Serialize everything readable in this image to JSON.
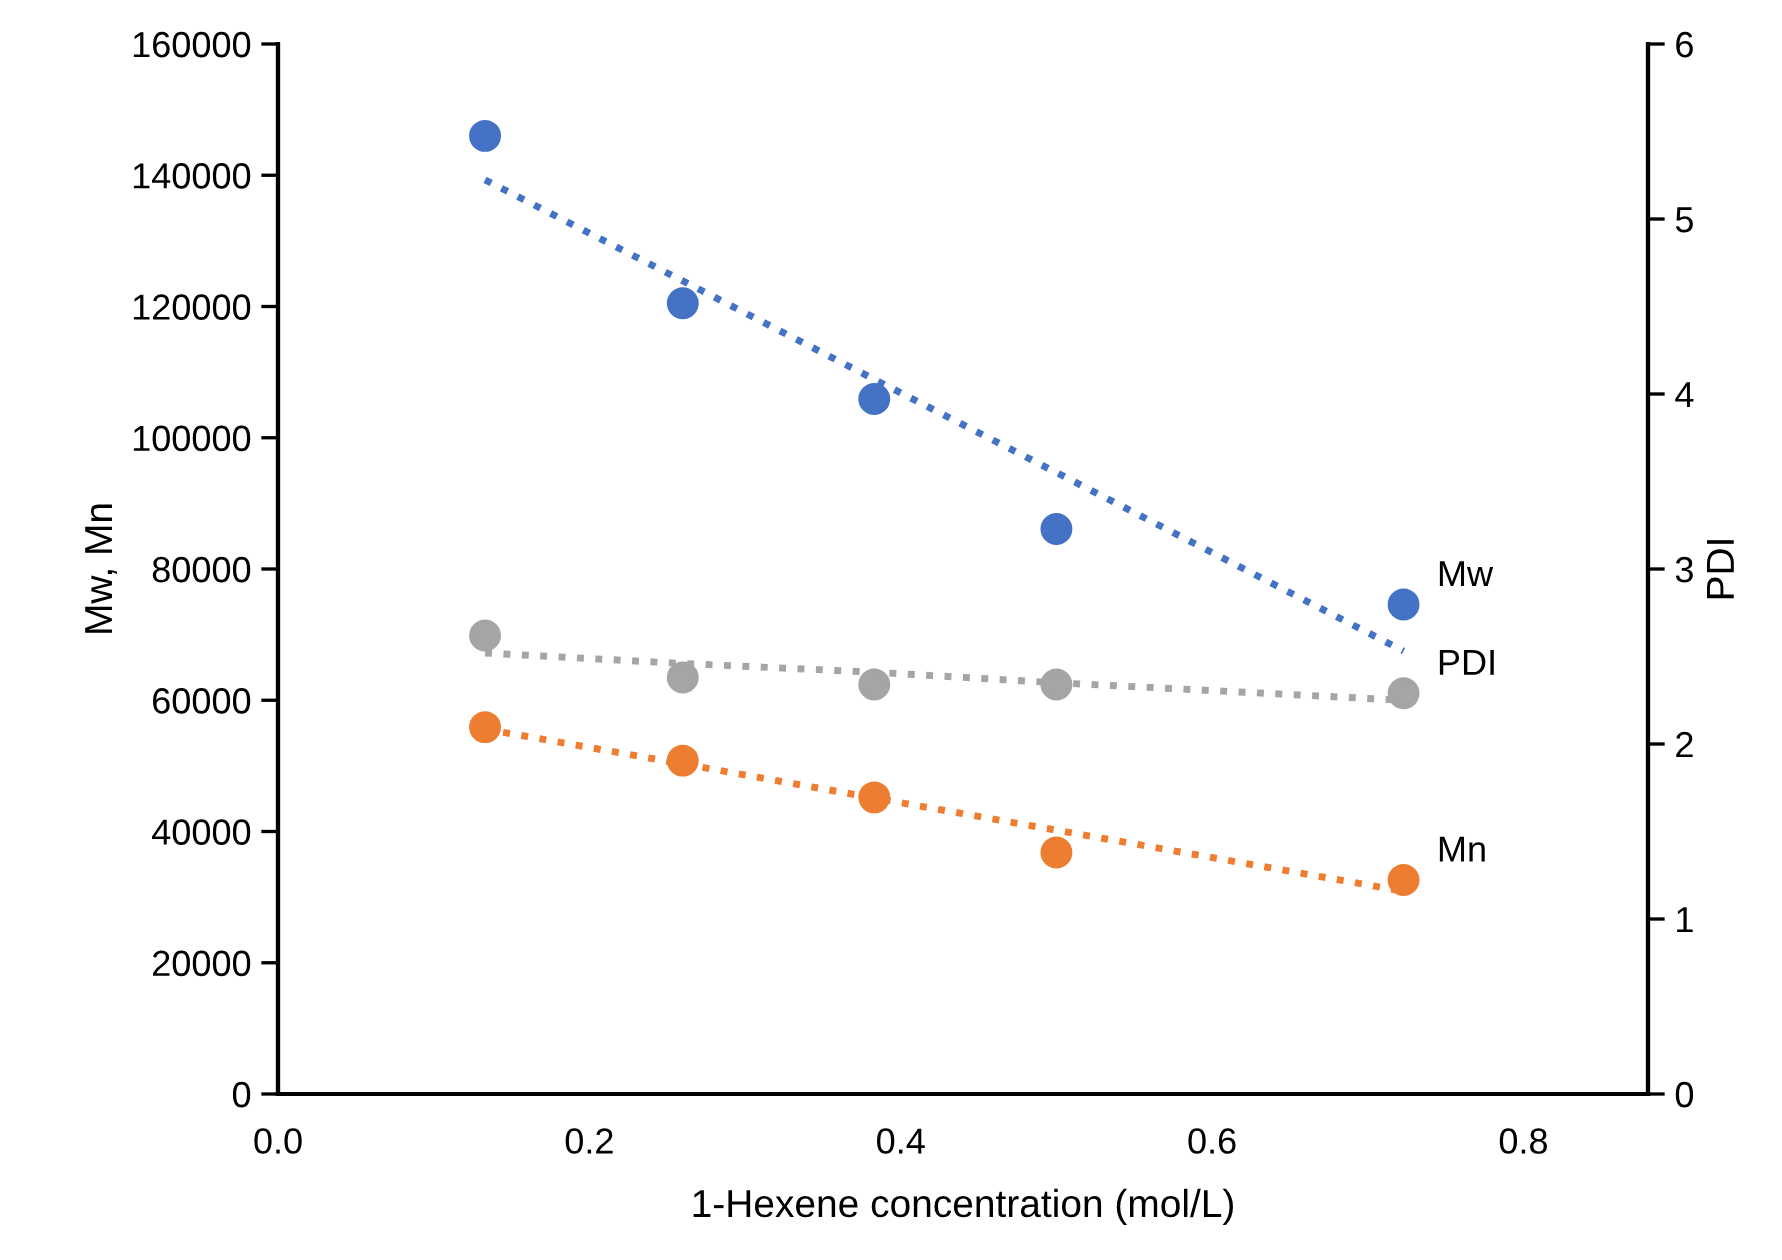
{
  "chart_data": {
    "type": "scatter",
    "xlabel": "1-Hexene concentration (mol/L)",
    "ylabel": "Mw, Mn",
    "y2label": "PDI",
    "x": [
      0.133,
      0.26,
      0.383,
      0.5,
      0.723
    ],
    "series": [
      {
        "name": "Mw",
        "color": "#4472c4",
        "values": [
          146000,
          120500,
          105900,
          86100,
          74600
        ]
      },
      {
        "name": "Mn",
        "color": "#ed7d31",
        "values": [
          55900,
          50800,
          45200,
          36800,
          32600
        ]
      },
      {
        "name": "PDI",
        "color": "#a5a5a5",
        "axis": "y2",
        "values": [
          2.62,
          2.38,
          2.34,
          2.34,
          2.29
        ]
      },
      {
        "type": "line",
        "color": "#4472c4",
        "line_style": "dotted",
        "marker": "none",
        "values": [
          139300,
          123900,
          108900,
          94700,
          67500
        ]
      },
      {
        "type": "line",
        "color": "#ed7d31",
        "line_style": "dotted",
        "marker": "none",
        "values": [
          55600,
          50300,
          45100,
          40200,
          30900
        ]
      },
      {
        "type": "line",
        "color": "#a5a5a5",
        "line_style": "dotted",
        "marker": "none",
        "axis": "y2",
        "values": [
          2.52,
          2.46,
          2.41,
          2.35,
          2.25
        ]
      }
    ],
    "marker": "circle",
    "grid": false,
    "legend": false,
    "xlim": [
      0,
      0.88
    ],
    "xticks": [
      {
        "value": 0,
        "label": "0.0"
      },
      {
        "value": 0.2,
        "label": "0.2"
      },
      {
        "value": 0.4,
        "label": "0.4"
      },
      {
        "value": 0.6,
        "label": "0.6"
      },
      {
        "value": 0.8,
        "label": "0.8"
      }
    ],
    "ylim": [
      0,
      160000
    ],
    "yticks": [
      0,
      20000,
      40000,
      60000,
      80000,
      100000,
      120000,
      140000,
      160000
    ],
    "y2lim": [
      0,
      6
    ],
    "y2ticks": [
      0,
      1,
      2,
      3,
      4,
      5,
      6
    ]
  }
}
